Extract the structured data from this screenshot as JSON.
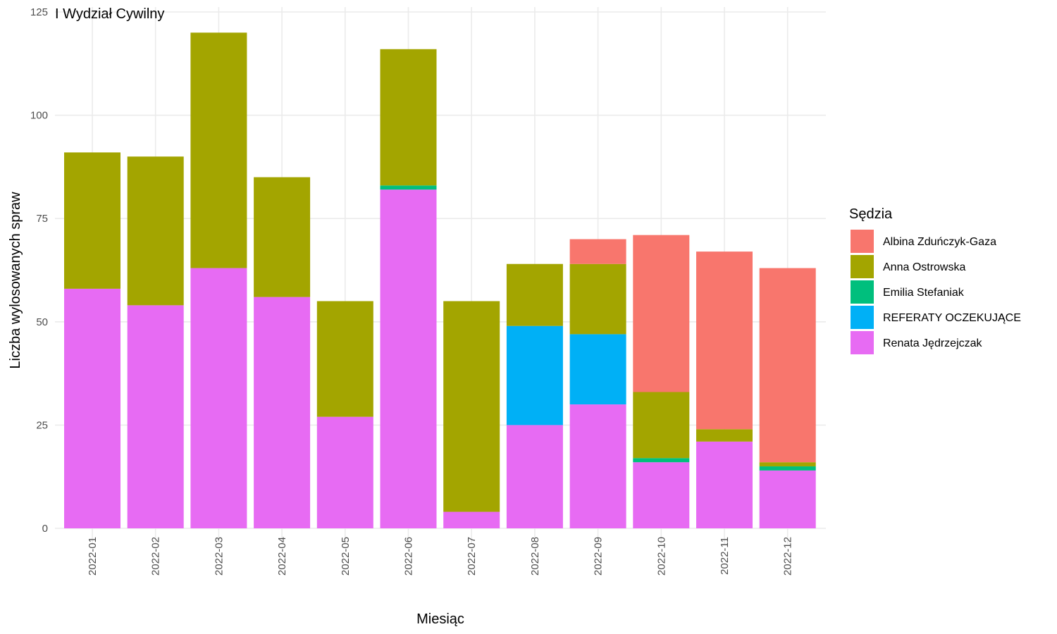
{
  "chart_data": {
    "type": "bar",
    "stacked": true,
    "title": "I Wydział Cywilny",
    "xlabel": "Miesiąc",
    "ylabel": "Liczba wylosowanych spraw",
    "ylim": [
      0,
      125
    ],
    "y_ticks": [
      0,
      25,
      50,
      75,
      100,
      125
    ],
    "grid": true,
    "legend_position": "right",
    "legend_title": "Sędzia",
    "categories": [
      "2022-01",
      "2022-02",
      "2022-03",
      "2022-04",
      "2022-05",
      "2022-06",
      "2022-07",
      "2022-08",
      "2022-09",
      "2022-10",
      "2022-11",
      "2022-12"
    ],
    "series": [
      {
        "name": "Albina Zduńczyk-Gaza",
        "color": "#F8766D",
        "values": [
          0,
          0,
          0,
          0,
          0,
          0,
          0,
          0,
          6,
          38,
          43,
          47
        ]
      },
      {
        "name": "Anna Ostrowska",
        "color": "#A3A500",
        "values": [
          33,
          36,
          57,
          29,
          28,
          33,
          51,
          15,
          17,
          16,
          3,
          1
        ]
      },
      {
        "name": "Emilia Stefaniak",
        "color": "#00BF7D",
        "values": [
          0,
          0,
          0,
          0,
          0,
          1,
          0,
          0,
          0,
          1,
          0,
          1
        ]
      },
      {
        "name": "REFERATY OCZEKUJĄCE",
        "color": "#00B0F6",
        "values": [
          0,
          0,
          0,
          0,
          0,
          0,
          0,
          24,
          17,
          0,
          0,
          0
        ]
      },
      {
        "name": "Renata Jędrzejczak",
        "color": "#E76BF3",
        "values": [
          58,
          54,
          63,
          56,
          27,
          82,
          4,
          25,
          30,
          16,
          21,
          14
        ]
      }
    ]
  }
}
